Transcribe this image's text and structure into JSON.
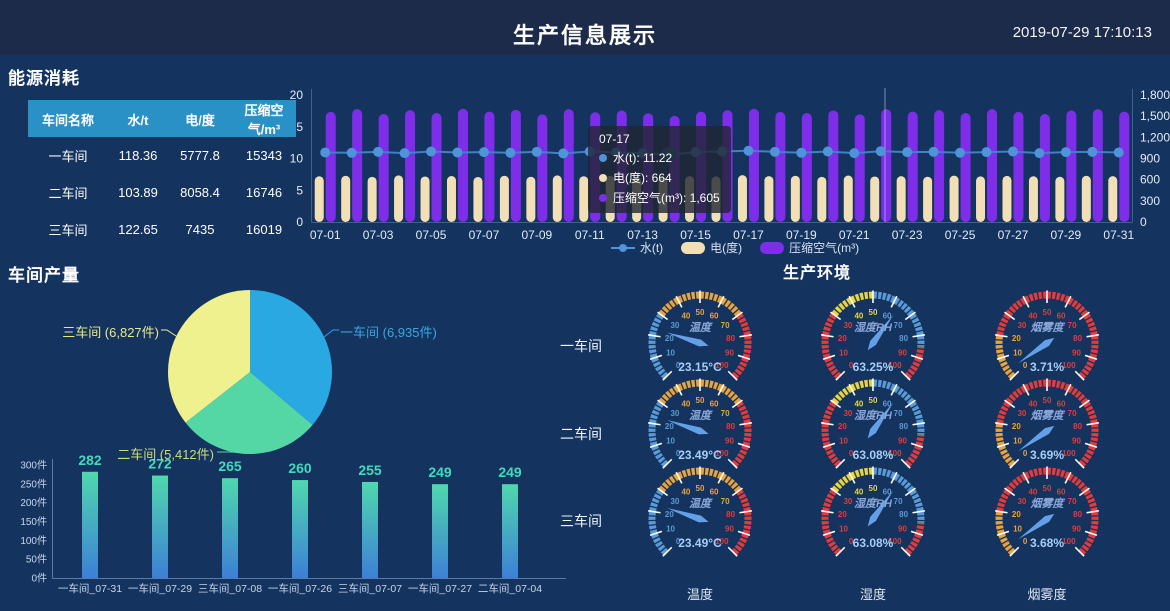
{
  "page_bg": "#14335f",
  "header": {
    "bg": "#1d2b4b",
    "title": "生产信息展示",
    "timestamp": "2019-07-29 17:10:13"
  },
  "sections": {
    "energy_title": "能源消耗",
    "output_title": "车间产量",
    "environment_title": "生产环境"
  },
  "energy_table": {
    "header_bg": "#2a91c6",
    "columns": [
      "车间名称",
      "水/t",
      "电/度",
      "压缩空气/m³"
    ],
    "rows": [
      [
        "一车间",
        "118.36",
        "5777.8",
        "15343"
      ],
      [
        "二车间",
        "103.89",
        "8058.4",
        "16746"
      ],
      [
        "三车间",
        "122.65",
        "7435",
        "16019"
      ]
    ]
  },
  "chart_data": [
    {
      "id": "energy_daily_combo",
      "type": "bar",
      "subtype": "dual-axis bar+line",
      "categories": [
        "07-01",
        "07-02",
        "07-03",
        "07-04",
        "07-05",
        "07-06",
        "07-07",
        "07-08",
        "07-09",
        "07-10",
        "07-11",
        "07-12",
        "07-13",
        "07-14",
        "07-15",
        "07-16",
        "07-17",
        "07-18",
        "07-19",
        "07-20",
        "07-21",
        "07-22",
        "07-23",
        "07-24",
        "07-25",
        "07-26",
        "07-27",
        "07-28",
        "07-29",
        "07-30",
        "07-31"
      ],
      "x_labeled_every": 2,
      "series": [
        {
          "name": "水(t)",
          "type": "line",
          "axis": "left",
          "color": "#4f93d9",
          "values": [
            10.95,
            10.9,
            11.05,
            10.85,
            11.1,
            10.95,
            11.0,
            10.9,
            11.05,
            10.8,
            11.1,
            10.95,
            10.85,
            10.6,
            11.0,
            11.1,
            11.22,
            11.05,
            10.9,
            11.1,
            10.85,
            11.15,
            11.0,
            11.05,
            10.9,
            11.0,
            11.1,
            10.85,
            11.0,
            11.05,
            10.95
          ]
        },
        {
          "name": "电(度)",
          "type": "bar",
          "axis": "right",
          "color": "#f3dfb6",
          "values": [
            648,
            655,
            640,
            660,
            645,
            652,
            638,
            656,
            642,
            660,
            649,
            653,
            641,
            635,
            650,
            646,
            664,
            651,
            656,
            640,
            659,
            645,
            650,
            642,
            658,
            646,
            653,
            648,
            641,
            655,
            650
          ]
        },
        {
          "name": "压缩空气(m³)",
          "type": "bar",
          "axis": "right",
          "color": "#7e2ee8",
          "values": [
            1560,
            1600,
            1530,
            1585,
            1545,
            1605,
            1565,
            1590,
            1525,
            1600,
            1555,
            1580,
            1540,
            1505,
            1565,
            1585,
            1605,
            1560,
            1545,
            1580,
            1525,
            1600,
            1565,
            1585,
            1545,
            1600,
            1560,
            1530,
            1580,
            1600,
            1565
          ]
        }
      ],
      "left_axis": {
        "min": 0,
        "max": 20,
        "ticks": [
          0,
          5,
          10,
          15,
          20
        ]
      },
      "right_axis": {
        "min": 0,
        "max": 1800,
        "tick_labels": [
          "0",
          "300",
          "600",
          "900",
          "1,200",
          "1,500",
          "1,800"
        ]
      },
      "highlight_index": 13,
      "tooltip": {
        "title": "07-17",
        "lines": [
          {
            "color": "#4f93d9",
            "text": "水(t): 11.22"
          },
          {
            "color": "#f3dfb6",
            "text": "电(度): 664"
          },
          {
            "color": "#7e2ee8",
            "text": "压缩空气(m³): 1,605"
          }
        ]
      },
      "legend": [
        "水(t)",
        "电(度)",
        "压缩空气(m³)"
      ]
    },
    {
      "id": "workshop_output_pie",
      "type": "pie",
      "slices": [
        {
          "name": "一车间",
          "value": 6935,
          "label": "一车间 (6,935件)",
          "color": "#29a8e1",
          "label_color": "#3aa8e0"
        },
        {
          "name": "二车间",
          "value": 5412,
          "label": "二车间 (5,412件)",
          "color": "#55d7a5",
          "label_color": "#cbdd78"
        },
        {
          "name": "三车间",
          "value": 6827,
          "label": "三车间 (6,827件)",
          "color": "#eef18e",
          "label_color": "#e9e98c"
        }
      ]
    },
    {
      "id": "top_output_days_bar",
      "type": "bar",
      "categories": [
        "一车间_07-31",
        "一车间_07-29",
        "三车间_07-08",
        "一车间_07-26",
        "三车间_07-07",
        "一车间_07-27",
        "二车间_07-04"
      ],
      "values": [
        282,
        272,
        265,
        260,
        255,
        249,
        249
      ],
      "ylim": [
        0,
        300
      ],
      "y_tick_labels": [
        "0件",
        "50件",
        "100件",
        "150件",
        "200件",
        "250件",
        "300件"
      ],
      "bar_gradient": [
        "#4fd8ad",
        "#3d7fd6"
      ],
      "value_color": "#45d9bb"
    },
    {
      "id": "environment_gauges",
      "type": "heatmap",
      "subtype": "gauge-grid",
      "row_labels": [
        "一车间",
        "二车间",
        "三车间"
      ],
      "column_labels": [
        "温度",
        "湿度",
        "烟雾度"
      ],
      "gauge_types": {
        "temp": {
          "segments": [
            [
              0.3,
              "#5b9bd5"
            ],
            [
              0.7,
              "#e8a33d"
            ],
            [
              1,
              "#e23b3b"
            ]
          ]
        },
        "hum": {
          "segments": [
            [
              0.3,
              "#e23b3b"
            ],
            [
              0.5,
              "#e8d53d"
            ],
            [
              0.85,
              "#5b9bd5"
            ],
            [
              1,
              "#e23b3b"
            ]
          ]
        },
        "smoke": {
          "segments": [
            [
              0.2,
              "#e8a33d"
            ],
            [
              1,
              "#e23b3b"
            ]
          ]
        }
      },
      "scale": {
        "min": 0,
        "max": 100,
        "major_step": 10
      },
      "rows": [
        [
          {
            "title": "温度",
            "type": "temp",
            "value": 23.15,
            "display": "23.15°C"
          },
          {
            "title": "湿度RH",
            "type": "hum",
            "value": 63.25,
            "display": "63.25%"
          },
          {
            "title": "烟雾度",
            "type": "smoke",
            "value": 3.71,
            "display": "3.71%"
          }
        ],
        [
          {
            "title": "温度",
            "type": "temp",
            "value": 23.49,
            "display": "23.49°C"
          },
          {
            "title": "湿度RH",
            "type": "hum",
            "value": 63.08,
            "display": "63.08%"
          },
          {
            "title": "烟雾度",
            "type": "smoke",
            "value": 3.69,
            "display": "3.69%"
          }
        ],
        [
          {
            "title": "温度",
            "type": "temp",
            "value": 23.49,
            "display": "23.49°C"
          },
          {
            "title": "湿度RH",
            "type": "hum",
            "value": 63.08,
            "display": "63.08%"
          },
          {
            "title": "烟雾度",
            "type": "smoke",
            "value": 3.68,
            "display": "3.68%"
          }
        ]
      ]
    }
  ]
}
